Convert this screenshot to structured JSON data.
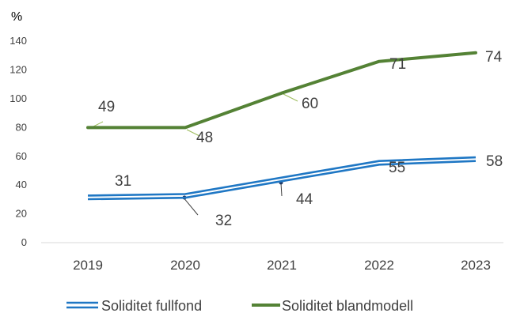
{
  "chart_data": {
    "type": "line",
    "title": "",
    "xlabel": "",
    "ylabel": "",
    "unit_label": "%",
    "categories": [
      "2019",
      "2020",
      "2021",
      "2022",
      "2023"
    ],
    "y_ticks": [
      "0",
      "20",
      "40",
      "60",
      "80",
      "100",
      "120",
      "140"
    ],
    "ylim": [
      0,
      140
    ],
    "grid": false,
    "legend_position": "bottom",
    "series": [
      {
        "name": "Soliditet fullfond",
        "color": "#1f77c4",
        "style": "double-line",
        "values": [
          31,
          32,
          44,
          55,
          58
        ],
        "data_labels": [
          "31",
          "32",
          "44",
          "55",
          "58"
        ]
      },
      {
        "name": "Soliditet blandmodell",
        "color": "#548235",
        "style": "solid",
        "values": [
          80,
          80,
          104,
          126,
          132
        ],
        "data_labels": [
          "49",
          "48",
          "60",
          "71",
          "74"
        ]
      }
    ]
  }
}
